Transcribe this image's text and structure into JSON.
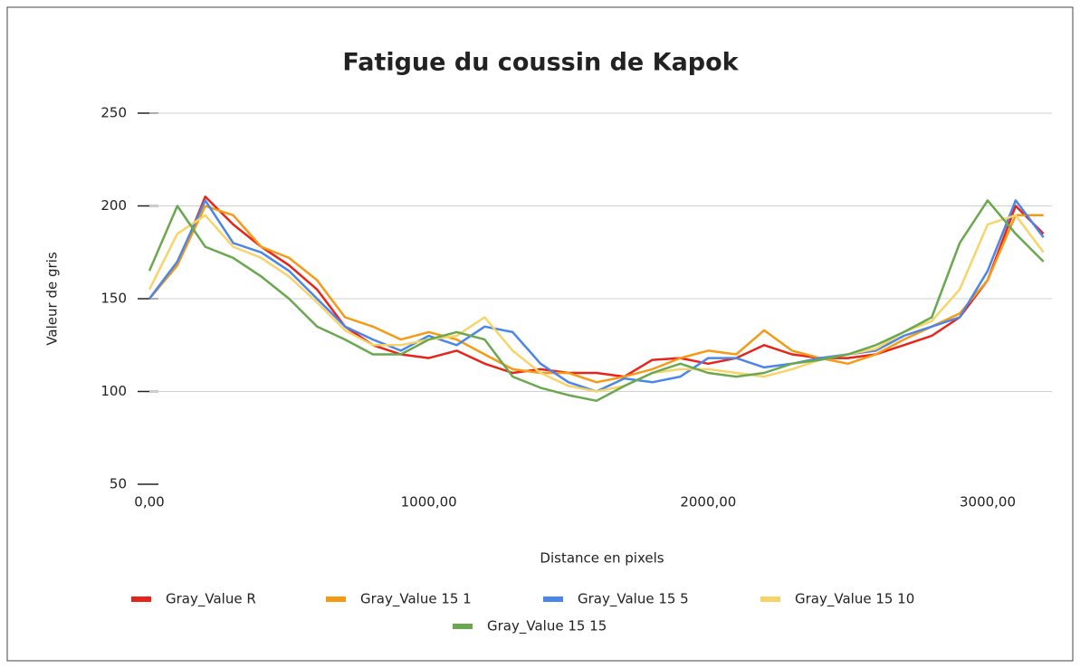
{
  "chart_data": {
    "type": "line",
    "title": "Fatigue du coussin de Kapok",
    "x_label": "Distance en pixels",
    "y_label": "Valeur de gris",
    "x": [
      0,
      100,
      200,
      300,
      400,
      500,
      600,
      700,
      800,
      900,
      1000,
      1100,
      1200,
      1300,
      1400,
      1500,
      1600,
      1700,
      1800,
      1900,
      2000,
      2100,
      2200,
      2300,
      2400,
      2500,
      2600,
      2700,
      2800,
      2900,
      3000,
      3100,
      3200
    ],
    "series": [
      {
        "name": "Gray_Value R",
        "color": "#e8231a",
        "values": [
          150,
          168,
          205,
          190,
          178,
          168,
          155,
          135,
          125,
          120,
          118,
          122,
          115,
          110,
          112,
          110,
          110,
          108,
          117,
          118,
          115,
          118,
          125,
          120,
          118,
          118,
          120,
          125,
          130,
          140,
          160,
          200,
          185
        ]
      },
      {
        "name": "Gray_Value 15 1",
        "color": "#f59a14",
        "values": [
          150,
          168,
          200,
          195,
          178,
          172,
          160,
          140,
          135,
          128,
          132,
          128,
          120,
          112,
          110,
          110,
          105,
          108,
          112,
          118,
          122,
          120,
          133,
          122,
          118,
          115,
          120,
          128,
          135,
          142,
          160,
          195,
          195
        ]
      },
      {
        "name": "Gray_Value 15 5",
        "color": "#4a86e8",
        "values": [
          150,
          170,
          203,
          180,
          175,
          165,
          150,
          135,
          128,
          122,
          130,
          125,
          135,
          132,
          115,
          105,
          100,
          107,
          105,
          108,
          118,
          118,
          113,
          115,
          118,
          120,
          122,
          130,
          135,
          140,
          165,
          203,
          183
        ]
      },
      {
        "name": "Gray_Value 15 10",
        "color": "#f7d46a",
        "values": [
          155,
          185,
          195,
          178,
          172,
          162,
          148,
          133,
          125,
          125,
          128,
          130,
          140,
          122,
          110,
          103,
          100,
          103,
          110,
          112,
          112,
          110,
          108,
          112,
          117,
          120,
          123,
          132,
          138,
          155,
          190,
          195,
          175
        ]
      },
      {
        "name": "Gray_Value 15 15",
        "color": "#6aa84f",
        "values": [
          165,
          200,
          178,
          172,
          162,
          150,
          135,
          128,
          120,
          120,
          128,
          132,
          128,
          108,
          102,
          98,
          95,
          103,
          110,
          115,
          110,
          108,
          110,
          115,
          117,
          120,
          125,
          132,
          140,
          180,
          203,
          185,
          170
        ]
      }
    ],
    "xlim": [
      0,
      3230
    ],
    "xticks": [
      {
        "value": 0,
        "label": "0,00"
      },
      {
        "value": 1000,
        "label": "1000,00"
      },
      {
        "value": 2000,
        "label": "2000,00"
      },
      {
        "value": 3000,
        "label": "3000,00"
      }
    ],
    "ylim": [
      50,
      250
    ],
    "yticks": [
      50,
      100,
      150,
      200,
      250
    ],
    "grid": true
  }
}
